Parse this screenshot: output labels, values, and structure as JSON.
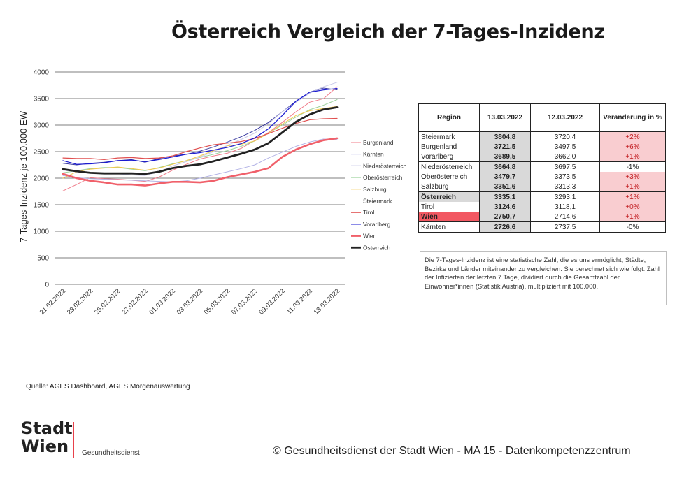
{
  "title": "Österreich Vergleich der 7-Tages-Inzidenz",
  "source": "Quelle: AGES Dashboard, AGES Morgenauswertung",
  "logo": {
    "line1": "Stadt",
    "line2": "Wien",
    "sub": "Gesundheitsdienst"
  },
  "copyright": "© Gesundheitsdienst der Stadt Wien - MA 15 - Datenkompetenzzentrum",
  "info": "Die 7-Tages-Inzidenz ist eine statistische Zahl, die es uns ermöglicht, Städte, Bezirke und Länder miteinander zu vergleichen. Sie berechnet sich wie folgt: Zahl der Infizierten der letzten 7 Tage, dividiert durch die Gesamtzahl der Einwohner*innen (Statistik Austria), multipliziert mit 100.000.",
  "table": {
    "headers": [
      "Region",
      "13.03.2022",
      "12.03.2022",
      "Veränderung in %"
    ],
    "rows": [
      {
        "region": "Steiermark",
        "a": "3804,8",
        "b": "3720,4",
        "c": "+2%"
      },
      {
        "region": "Burgenland",
        "a": "3721,5",
        "b": "3497,5",
        "c": "+6%"
      },
      {
        "region": "Vorarlberg",
        "a": "3689,5",
        "b": "3662,0",
        "c": "+1%"
      },
      {
        "region": "Niederösterreich",
        "a": "3664,8",
        "b": "3697,5",
        "c": "-1%"
      },
      {
        "region": "Oberösterreich",
        "a": "3479,7",
        "b": "3373,5",
        "c": "+3%"
      },
      {
        "region": "Salzburg",
        "a": "3351,6",
        "b": "3313,3",
        "c": "+1%"
      },
      {
        "region": "Österreich",
        "a": "3335,1",
        "b": "3293,1",
        "c": "+1%"
      },
      {
        "region": "Tirol",
        "a": "3124,6",
        "b": "3118,1",
        "c": "+0%"
      },
      {
        "region": "Wien",
        "a": "2750,7",
        "b": "2714,6",
        "c": "+1%"
      },
      {
        "region": "Kärnten",
        "a": "2726,6",
        "b": "2737,5",
        "c": "-0%"
      }
    ]
  },
  "chart_data": {
    "type": "line",
    "ylabel": "7-Tages-Inzidenz je 100.000 EW",
    "ylim": [
      0,
      4000
    ],
    "yticks": [
      0,
      500,
      1000,
      1500,
      2000,
      2500,
      3000,
      3500,
      4000
    ],
    "grid": true,
    "legend": "right",
    "x": [
      "21.02.2022",
      "22.02.2022",
      "23.02.2022",
      "24.02.2022",
      "25.02.2022",
      "26.02.2022",
      "27.02.2022",
      "28.02.2022",
      "01.03.2022",
      "02.03.2022",
      "03.03.2022",
      "04.03.2022",
      "05.03.2022",
      "06.03.2022",
      "07.03.2022",
      "08.03.2022",
      "09.03.2022",
      "10.03.2022",
      "11.03.2022",
      "12.03.2022",
      "13.03.2022"
    ],
    "xtick_labels": [
      "21.02.2022",
      "23.02.2022",
      "25.02.2022",
      "27.02.2022",
      "01.03.2022",
      "03.03.2022",
      "05.03.2022",
      "07.03.2022",
      "09.03.2022",
      "11.03.2022",
      "13.03.2022"
    ],
    "series": [
      {
        "name": "Burgenland",
        "color": "#f07c8a",
        "width": 1,
        "values": [
          1760,
          1880,
          2010,
          1990,
          1980,
          1960,
          1940,
          2020,
          2150,
          2260,
          2360,
          2420,
          2470,
          2560,
          2710,
          2860,
          3050,
          3250,
          3430,
          3497.5,
          3721.5
        ]
      },
      {
        "name": "Kärnten",
        "color": "#b4b4e6",
        "width": 1,
        "values": [
          2050,
          2010,
          1990,
          1980,
          1970,
          1960,
          1950,
          1940,
          1930,
          1950,
          2000,
          2060,
          2120,
          2180,
          2250,
          2380,
          2490,
          2600,
          2680,
          2737.5,
          2726.6
        ]
      },
      {
        "name": "Niederösterreich",
        "color": "#3a3aa0",
        "width": 1,
        "values": [
          2280,
          2250,
          2280,
          2300,
          2330,
          2350,
          2300,
          2370,
          2420,
          2450,
          2510,
          2590,
          2680,
          2780,
          2900,
          3050,
          3250,
          3450,
          3620,
          3697.5,
          3664.8
        ]
      },
      {
        "name": "Oberösterreich",
        "color": "#9bd29b",
        "width": 1,
        "values": [
          2100,
          2140,
          2180,
          2200,
          2200,
          2170,
          2140,
          2200,
          2270,
          2330,
          2390,
          2450,
          2520,
          2600,
          2700,
          2850,
          3000,
          3150,
          3290,
          3373.5,
          3479.7
        ]
      },
      {
        "name": "Salzburg",
        "color": "#f2c94c",
        "width": 1,
        "values": [
          2000,
          2120,
          2170,
          2190,
          2210,
          2180,
          2150,
          2190,
          2260,
          2330,
          2420,
          2520,
          2610,
          2640,
          2700,
          2850,
          3020,
          3180,
          3270,
          3313.3,
          3351.6
        ]
      },
      {
        "name": "Steiermark",
        "color": "#c8c8e8",
        "width": 1,
        "values": [
          2150,
          2120,
          2100,
          2090,
          2080,
          2060,
          2050,
          2120,
          2230,
          2310,
          2400,
          2500,
          2620,
          2730,
          2850,
          3030,
          3250,
          3430,
          3600,
          3720.4,
          3804.8
        ]
      },
      {
        "name": "Tirol",
        "color": "#e05050",
        "width": 1.2,
        "values": [
          2380,
          2370,
          2370,
          2350,
          2380,
          2390,
          2370,
          2380,
          2420,
          2500,
          2570,
          2630,
          2660,
          2690,
          2750,
          2840,
          2940,
          3030,
          3100,
          3118.1,
          3124.6
        ]
      },
      {
        "name": "Vorarlberg",
        "color": "#1a1ad2",
        "width": 1.2,
        "values": [
          2330,
          2260,
          2270,
          2290,
          2330,
          2340,
          2310,
          2350,
          2400,
          2450,
          2480,
          2530,
          2580,
          2650,
          2760,
          2930,
          3180,
          3450,
          3620,
          3662.0,
          3689.5
        ]
      },
      {
        "name": "Wien",
        "color": "#f0606a",
        "width": 2.6,
        "values": [
          2080,
          2000,
          1950,
          1920,
          1880,
          1880,
          1860,
          1900,
          1930,
          1930,
          1920,
          1950,
          2020,
          2070,
          2120,
          2190,
          2400,
          2540,
          2640,
          2714.6,
          2750.7
        ]
      },
      {
        "name": "Österreich",
        "color": "#222222",
        "width": 2.8,
        "values": [
          2170,
          2130,
          2100,
          2090,
          2090,
          2090,
          2080,
          2120,
          2190,
          2230,
          2260,
          2320,
          2390,
          2460,
          2540,
          2660,
          2860,
          3060,
          3200,
          3293.1,
          3335.1
        ]
      }
    ]
  }
}
